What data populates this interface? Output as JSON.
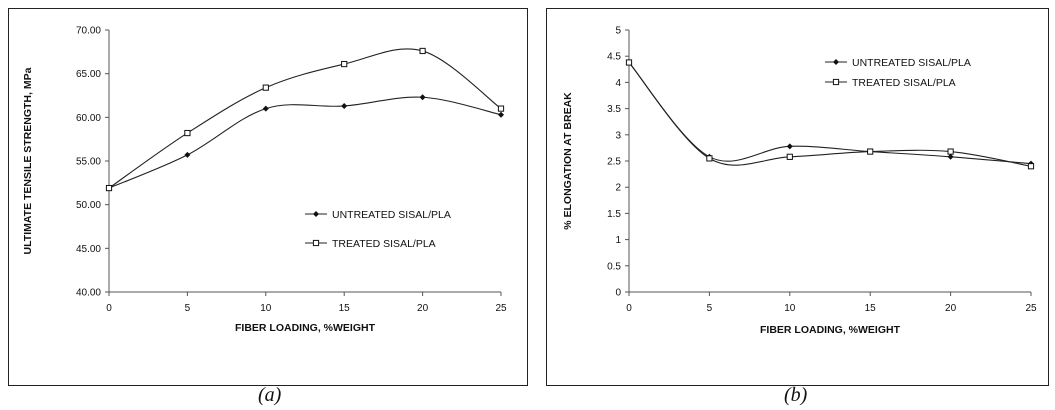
{
  "captions": [
    "(a)",
    "(b)"
  ],
  "chart_data": [
    {
      "type": "line",
      "panel": "a",
      "xlabel": "FIBER LOADING, %WEIGHT",
      "ylabel": "ULTIMATE TENSILE STRENGTH, MPa",
      "x": [
        0,
        5,
        10,
        15,
        20,
        25
      ],
      "xticks": [
        "0",
        "5",
        "10",
        "15",
        "20",
        "25"
      ],
      "xlim": [
        0,
        25
      ],
      "ylim": [
        40,
        70
      ],
      "yticks": [
        "40.00",
        "45.00",
        "50.00",
        "55.00",
        "60.00",
        "65.00",
        "70.00"
      ],
      "grid": false,
      "legend_position": "right",
      "series": [
        {
          "name": "UNTREATED SISAL/PLA",
          "marker": "filled-diamond",
          "values": [
            51.9,
            55.7,
            61.0,
            61.3,
            62.3,
            60.3
          ]
        },
        {
          "name": "TREATED SISAL/PLA",
          "marker": "open-square",
          "values": [
            51.9,
            58.2,
            63.4,
            66.1,
            67.6,
            61.0
          ]
        }
      ]
    },
    {
      "type": "line",
      "panel": "b",
      "xlabel": "FIBER LOADING, %WEIGHT",
      "ylabel": "% ELONGATION AT BREAK",
      "x": [
        0,
        5,
        10,
        15,
        20,
        25
      ],
      "xticks": [
        "0",
        "5",
        "10",
        "15",
        "20",
        "25"
      ],
      "xlim": [
        0,
        25
      ],
      "ylim": [
        0,
        5
      ],
      "yticks": [
        "0",
        "0.5",
        "1",
        "1.5",
        "2",
        "2.5",
        "3",
        "3.5",
        "4",
        "4.5",
        "5"
      ],
      "grid": false,
      "legend_position": "top-right",
      "series": [
        {
          "name": "UNTREATED SISAL/PLA",
          "marker": "filled-diamond",
          "values": [
            4.38,
            2.58,
            2.78,
            2.68,
            2.58,
            2.45
          ]
        },
        {
          "name": "TREATED SISAL/PLA",
          "marker": "open-square",
          "values": [
            4.38,
            2.55,
            2.58,
            2.68,
            2.68,
            2.4
          ]
        }
      ]
    }
  ]
}
